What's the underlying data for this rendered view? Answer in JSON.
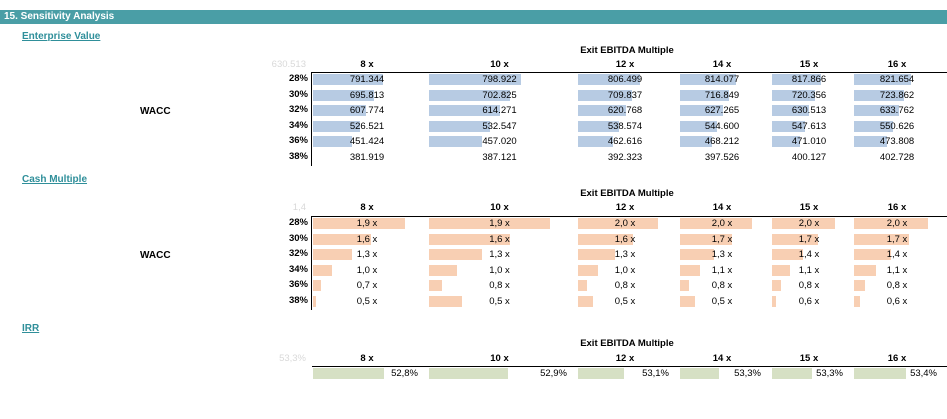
{
  "section_title": "15.  Sensitivity Analysis",
  "colors": {
    "header_bg": "#4a9ea6",
    "link": "#2f8f9a",
    "ev_bar": "#b7cbe3",
    "cm_bar": "#f8cfb3",
    "irr_bar": "#d6e0c4"
  },
  "exit_label": "Exit EBITDA Multiple",
  "wacc_label": "WACC",
  "columns": [
    "8 x",
    "10 x",
    "12 x",
    "14 x",
    "15 x",
    "16 x"
  ],
  "rows": [
    "28%",
    "30%",
    "32%",
    "34%",
    "36%",
    "38%"
  ],
  "enterprise_value": {
    "title": "Enterprise Value",
    "corner": "630.513",
    "values": [
      [
        "791.344",
        "798.922",
        "806.499",
        "814.077",
        "817.866",
        "821.654"
      ],
      [
        "695.813",
        "702.825",
        "709.837",
        "716.849",
        "720.356",
        "723.862"
      ],
      [
        "607.774",
        "614.271",
        "620.768",
        "627.265",
        "630.513",
        "633.762"
      ],
      [
        "526.521",
        "532.547",
        "538.574",
        "544.600",
        "547.613",
        "550.626"
      ],
      [
        "451.424",
        "457.020",
        "462.616",
        "468.212",
        "471.010",
        "473.808"
      ],
      [
        "381.919",
        "387.121",
        "392.323",
        "397.526",
        "400.127",
        "402.728"
      ]
    ],
    "fill": [
      [
        0.66,
        0.66,
        0.67,
        0.68,
        0.68,
        0.68
      ],
      [
        0.58,
        0.58,
        0.59,
        0.6,
        0.6,
        0.6
      ],
      [
        0.5,
        0.51,
        0.52,
        0.52,
        0.52,
        0.53
      ],
      [
        0.44,
        0.44,
        0.45,
        0.45,
        0.46,
        0.46
      ],
      [
        0.37,
        0.38,
        0.38,
        0.39,
        0.39,
        0.39
      ],
      [
        0.0,
        0.0,
        0.0,
        0.0,
        0.0,
        0.0
      ]
    ]
  },
  "cash_multiple": {
    "title": "Cash Multiple",
    "corner": "1,4",
    "values": [
      [
        "1,9 x",
        "1,9 x",
        "2,0 x",
        "2,0 x",
        "2,0 x",
        "2,0 x"
      ],
      [
        "1,6 x",
        "1,6 x",
        "1,6 x",
        "1,7 x",
        "1,7 x",
        "1,7 x"
      ],
      [
        "1,3 x",
        "1,3 x",
        "1,3 x",
        "1,3 x",
        "1,4 x",
        "1,4 x"
      ],
      [
        "1,0 x",
        "1,0 x",
        "1,0 x",
        "1,1 x",
        "1,1 x",
        "1,1 x"
      ],
      [
        "0,7 x",
        "0,8 x",
        "0,8 x",
        "0,8 x",
        "0,8 x",
        "0,8 x"
      ],
      [
        "0,5 x",
        "0,5 x",
        "0,5 x",
        "0,5 x",
        "0,6 x",
        "0,6 x"
      ]
    ],
    "fill": [
      [
        0.87,
        0.87,
        0.87,
        0.88,
        0.88,
        0.88
      ],
      [
        0.55,
        0.58,
        0.6,
        0.63,
        0.64,
        0.65
      ],
      [
        0.37,
        0.38,
        0.4,
        0.42,
        0.43,
        0.44
      ],
      [
        0.18,
        0.2,
        0.22,
        0.24,
        0.25,
        0.26
      ],
      [
        0.08,
        0.09,
        0.1,
        0.11,
        0.12,
        0.13
      ],
      [
        0.03,
        0.24,
        0.16,
        0.18,
        0.05,
        0.07
      ]
    ]
  },
  "irr": {
    "title": "IRR",
    "corner": "53,3%",
    "values": [
      "52,8%",
      "52,9%",
      "53,1%",
      "53,3%",
      "53,3%",
      "53,4%"
    ],
    "fill": [
      0.67,
      0.57,
      0.5,
      0.47,
      0.55,
      0.62
    ]
  }
}
